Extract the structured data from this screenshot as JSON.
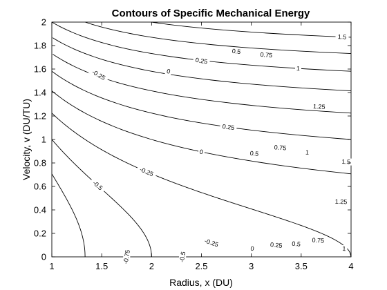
{
  "chart_data": {
    "type": "contour",
    "title": "Contours of Specific Mechanical Energy",
    "xlabel": "Radius, x (DU)",
    "ylabel": "Velocity, v (DU/TU)",
    "xlim": [
      1,
      4
    ],
    "ylim": [
      0,
      2
    ],
    "xticks": [
      1,
      1.5,
      2,
      2.5,
      3,
      3.5,
      4
    ],
    "xtick_labels": [
      "1",
      "1.5",
      "2",
      "2.5",
      "3",
      "3.5",
      "4"
    ],
    "yticks": [
      0,
      0.2,
      0.4,
      0.6,
      0.8,
      1,
      1.2,
      1.4,
      1.6,
      1.8,
      2
    ],
    "ytick_labels": [
      "0",
      "0.2",
      "0.4",
      "0.6",
      "0.8",
      "1",
      "1.2",
      "1.4",
      "1.6",
      "1.8",
      "2"
    ],
    "function": "energy = v^2/2 - 1/x",
    "levels": [
      -0.75,
      -0.5,
      -0.25,
      0,
      0.25,
      0.5,
      0.75,
      1,
      1.25,
      1.5
    ],
    "contour_labels": [
      {
        "level": -0.75,
        "text": "-0.75",
        "at": [
          [
            1.75,
            0.09
          ]
        ]
      },
      {
        "level": -0.5,
        "text": "-0.5",
        "at": [
          [
            1.46,
            0.5
          ],
          [
            2.31,
            0.06
          ]
        ]
      },
      {
        "level": -0.25,
        "text": "-0.25",
        "at": [
          [
            1.47,
            1.55
          ],
          [
            1.95,
            0.8
          ],
          [
            2.6,
            0.12
          ]
        ]
      },
      {
        "level": 0,
        "text": "0",
        "at": [
          [
            2.17,
            1.58
          ],
          [
            2.5,
            0.8
          ],
          [
            3.01,
            0.07
          ]
        ]
      },
      {
        "level": 0.25,
        "text": "0.25",
        "at": [
          [
            2.5,
            1.67
          ],
          [
            2.77,
            0.87
          ],
          [
            3.25,
            0.1
          ]
        ]
      },
      {
        "level": 0.5,
        "text": "0.5",
        "at": [
          [
            2.85,
            1.75
          ],
          [
            3.03,
            0.88
          ],
          [
            3.45,
            0.11
          ]
        ]
      },
      {
        "level": 0.75,
        "text": "0.75",
        "at": [
          [
            3.15,
            1.72
          ],
          [
            3.29,
            0.93
          ],
          [
            3.67,
            0.14
          ]
        ]
      },
      {
        "level": 1,
        "text": "1",
        "at": [
          [
            3.47,
            1.7
          ],
          [
            3.56,
            0.89
          ],
          [
            3.93,
            0.07
          ]
        ]
      },
      {
        "level": 1.25,
        "text": "1.25",
        "at": [
          [
            3.68,
            1.28
          ],
          [
            3.9,
            0.47
          ]
        ]
      },
      {
        "level": 1.5,
        "text": "1.5",
        "at": [
          [
            3.91,
            1.78
          ],
          [
            3.95,
            0.81
          ]
        ]
      }
    ]
  }
}
